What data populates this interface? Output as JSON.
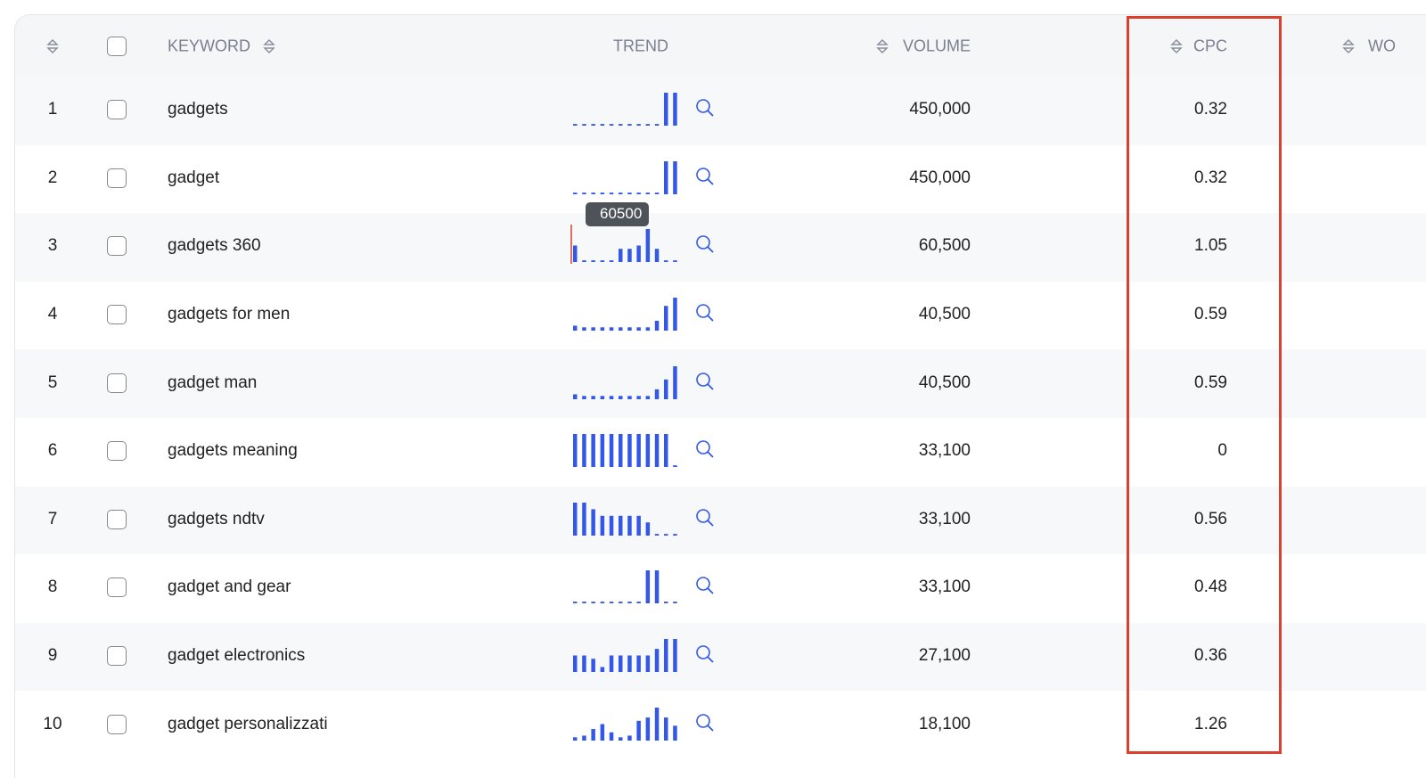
{
  "table": {
    "columns": [
      "KEYWORD",
      "TREND",
      "VOLUME",
      "CPC",
      "WO"
    ],
    "rows": [
      {
        "index": 1,
        "keyword": "gadgets",
        "trend": [
          5,
          5,
          5,
          5,
          5,
          5,
          5,
          5,
          5,
          5,
          100,
          100
        ],
        "volume": "450,000",
        "cpc": "0.32"
      },
      {
        "index": 2,
        "keyword": "gadget",
        "trend": [
          5,
          5,
          5,
          5,
          5,
          5,
          5,
          5,
          5,
          5,
          100,
          100
        ],
        "volume": "450,000",
        "cpc": "0.32"
      },
      {
        "index": 3,
        "keyword": "gadgets 360",
        "trend": [
          50,
          5,
          5,
          5,
          5,
          40,
          40,
          50,
          100,
          40,
          5,
          5
        ],
        "volume": "60,500",
        "cpc": "1.05"
      },
      {
        "index": 4,
        "keyword": "gadgets for men",
        "trend": [
          15,
          10,
          10,
          10,
          10,
          10,
          10,
          10,
          10,
          30,
          75,
          100
        ],
        "volume": "40,500",
        "cpc": "0.59"
      },
      {
        "index": 5,
        "keyword": "gadget man",
        "trend": [
          15,
          10,
          10,
          10,
          10,
          10,
          10,
          10,
          10,
          30,
          60,
          100
        ],
        "volume": "40,500",
        "cpc": "0.59"
      },
      {
        "index": 6,
        "keyword": "gadgets meaning",
        "trend": [
          100,
          100,
          100,
          100,
          100,
          100,
          100,
          100,
          100,
          100,
          100,
          5
        ],
        "volume": "33,100",
        "cpc": "0"
      },
      {
        "index": 7,
        "keyword": "gadgets ndtv",
        "trend": [
          100,
          100,
          80,
          60,
          60,
          60,
          60,
          60,
          40,
          5,
          5,
          5
        ],
        "volume": "33,100",
        "cpc": "0.56"
      },
      {
        "index": 8,
        "keyword": "gadget and gear",
        "trend": [
          5,
          5,
          5,
          5,
          5,
          5,
          5,
          5,
          100,
          100,
          5,
          5
        ],
        "volume": "33,100",
        "cpc": "0.48"
      },
      {
        "index": 9,
        "keyword": "gadget electronics",
        "trend": [
          50,
          50,
          40,
          15,
          50,
          50,
          50,
          50,
          50,
          70,
          100,
          100
        ],
        "volume": "27,100",
        "cpc": "0.36"
      },
      {
        "index": 10,
        "keyword": "gadget personalizzati",
        "trend": [
          10,
          15,
          35,
          50,
          25,
          10,
          15,
          60,
          70,
          100,
          70,
          45
        ],
        "volume": "18,100",
        "cpc": "1.26"
      }
    ],
    "tooltip": "60500"
  }
}
